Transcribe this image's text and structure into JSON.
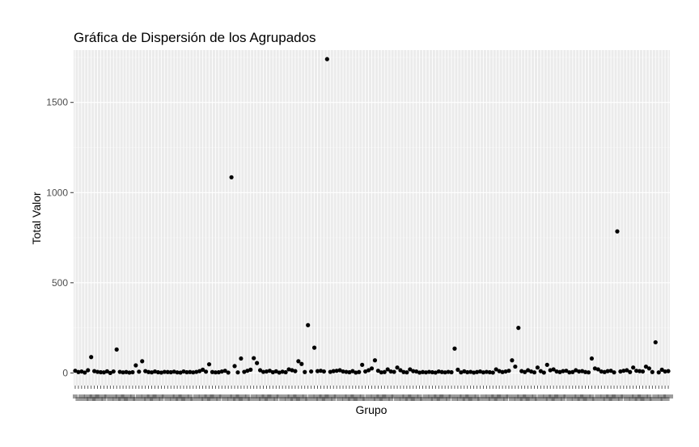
{
  "chart_data": {
    "type": "scatter",
    "title": "Gráfica de Dispersión de los Agrupados",
    "xlabel": "Grupo",
    "ylabel": "Total Valor",
    "ylim": [
      -70,
      1790
    ],
    "yticks": [
      0,
      500,
      1000,
      1500
    ],
    "grid": true,
    "legend": "none",
    "x_tick_labels_legible": false,
    "colors": {
      "panel": "#ebebeb",
      "grid_major": "#ffffff",
      "grid_minor": "#f5f5f5",
      "point": "#000000"
    },
    "values": [
      12,
      5,
      8,
      2,
      15,
      88,
      10,
      6,
      4,
      3,
      9,
      0,
      8,
      130,
      6,
      3,
      5,
      2,
      4,
      42,
      7,
      65,
      10,
      5,
      3,
      8,
      4,
      2,
      6,
      5,
      4,
      7,
      3,
      2,
      8,
      4,
      5,
      3,
      6,
      10,
      18,
      7,
      48,
      5,
      3,
      4,
      8,
      12,
      2,
      1085,
      38,
      3,
      80,
      6,
      12,
      18,
      82,
      55,
      15,
      6,
      8,
      12,
      4,
      9,
      2,
      7,
      4,
      20,
      15,
      10,
      65,
      50,
      5,
      265,
      8,
      140,
      10,
      12,
      8,
      1740,
      6,
      10,
      12,
      15,
      8,
      6,
      4,
      10,
      2,
      5,
      45,
      8,
      15,
      25,
      70,
      12,
      3,
      5,
      20,
      8,
      6,
      30,
      15,
      5,
      3,
      20,
      10,
      8,
      2,
      5,
      3,
      6,
      4,
      2,
      8,
      5,
      3,
      6,
      4,
      135,
      18,
      3,
      9,
      4,
      6,
      2,
      5,
      8,
      3,
      6,
      4,
      2,
      20,
      10,
      5,
      8,
      12,
      70,
      35,
      250,
      10,
      5,
      15,
      8,
      3,
      30,
      10,
      2,
      45,
      15,
      20,
      8,
      5,
      10,
      12,
      3,
      5,
      15,
      8,
      10,
      5,
      3,
      80,
      25,
      20,
      8,
      5,
      10,
      12,
      3,
      785,
      8,
      12,
      15,
      5,
      30,
      12,
      10,
      8,
      35,
      25,
      5,
      170,
      3,
      18,
      8,
      10
    ]
  }
}
